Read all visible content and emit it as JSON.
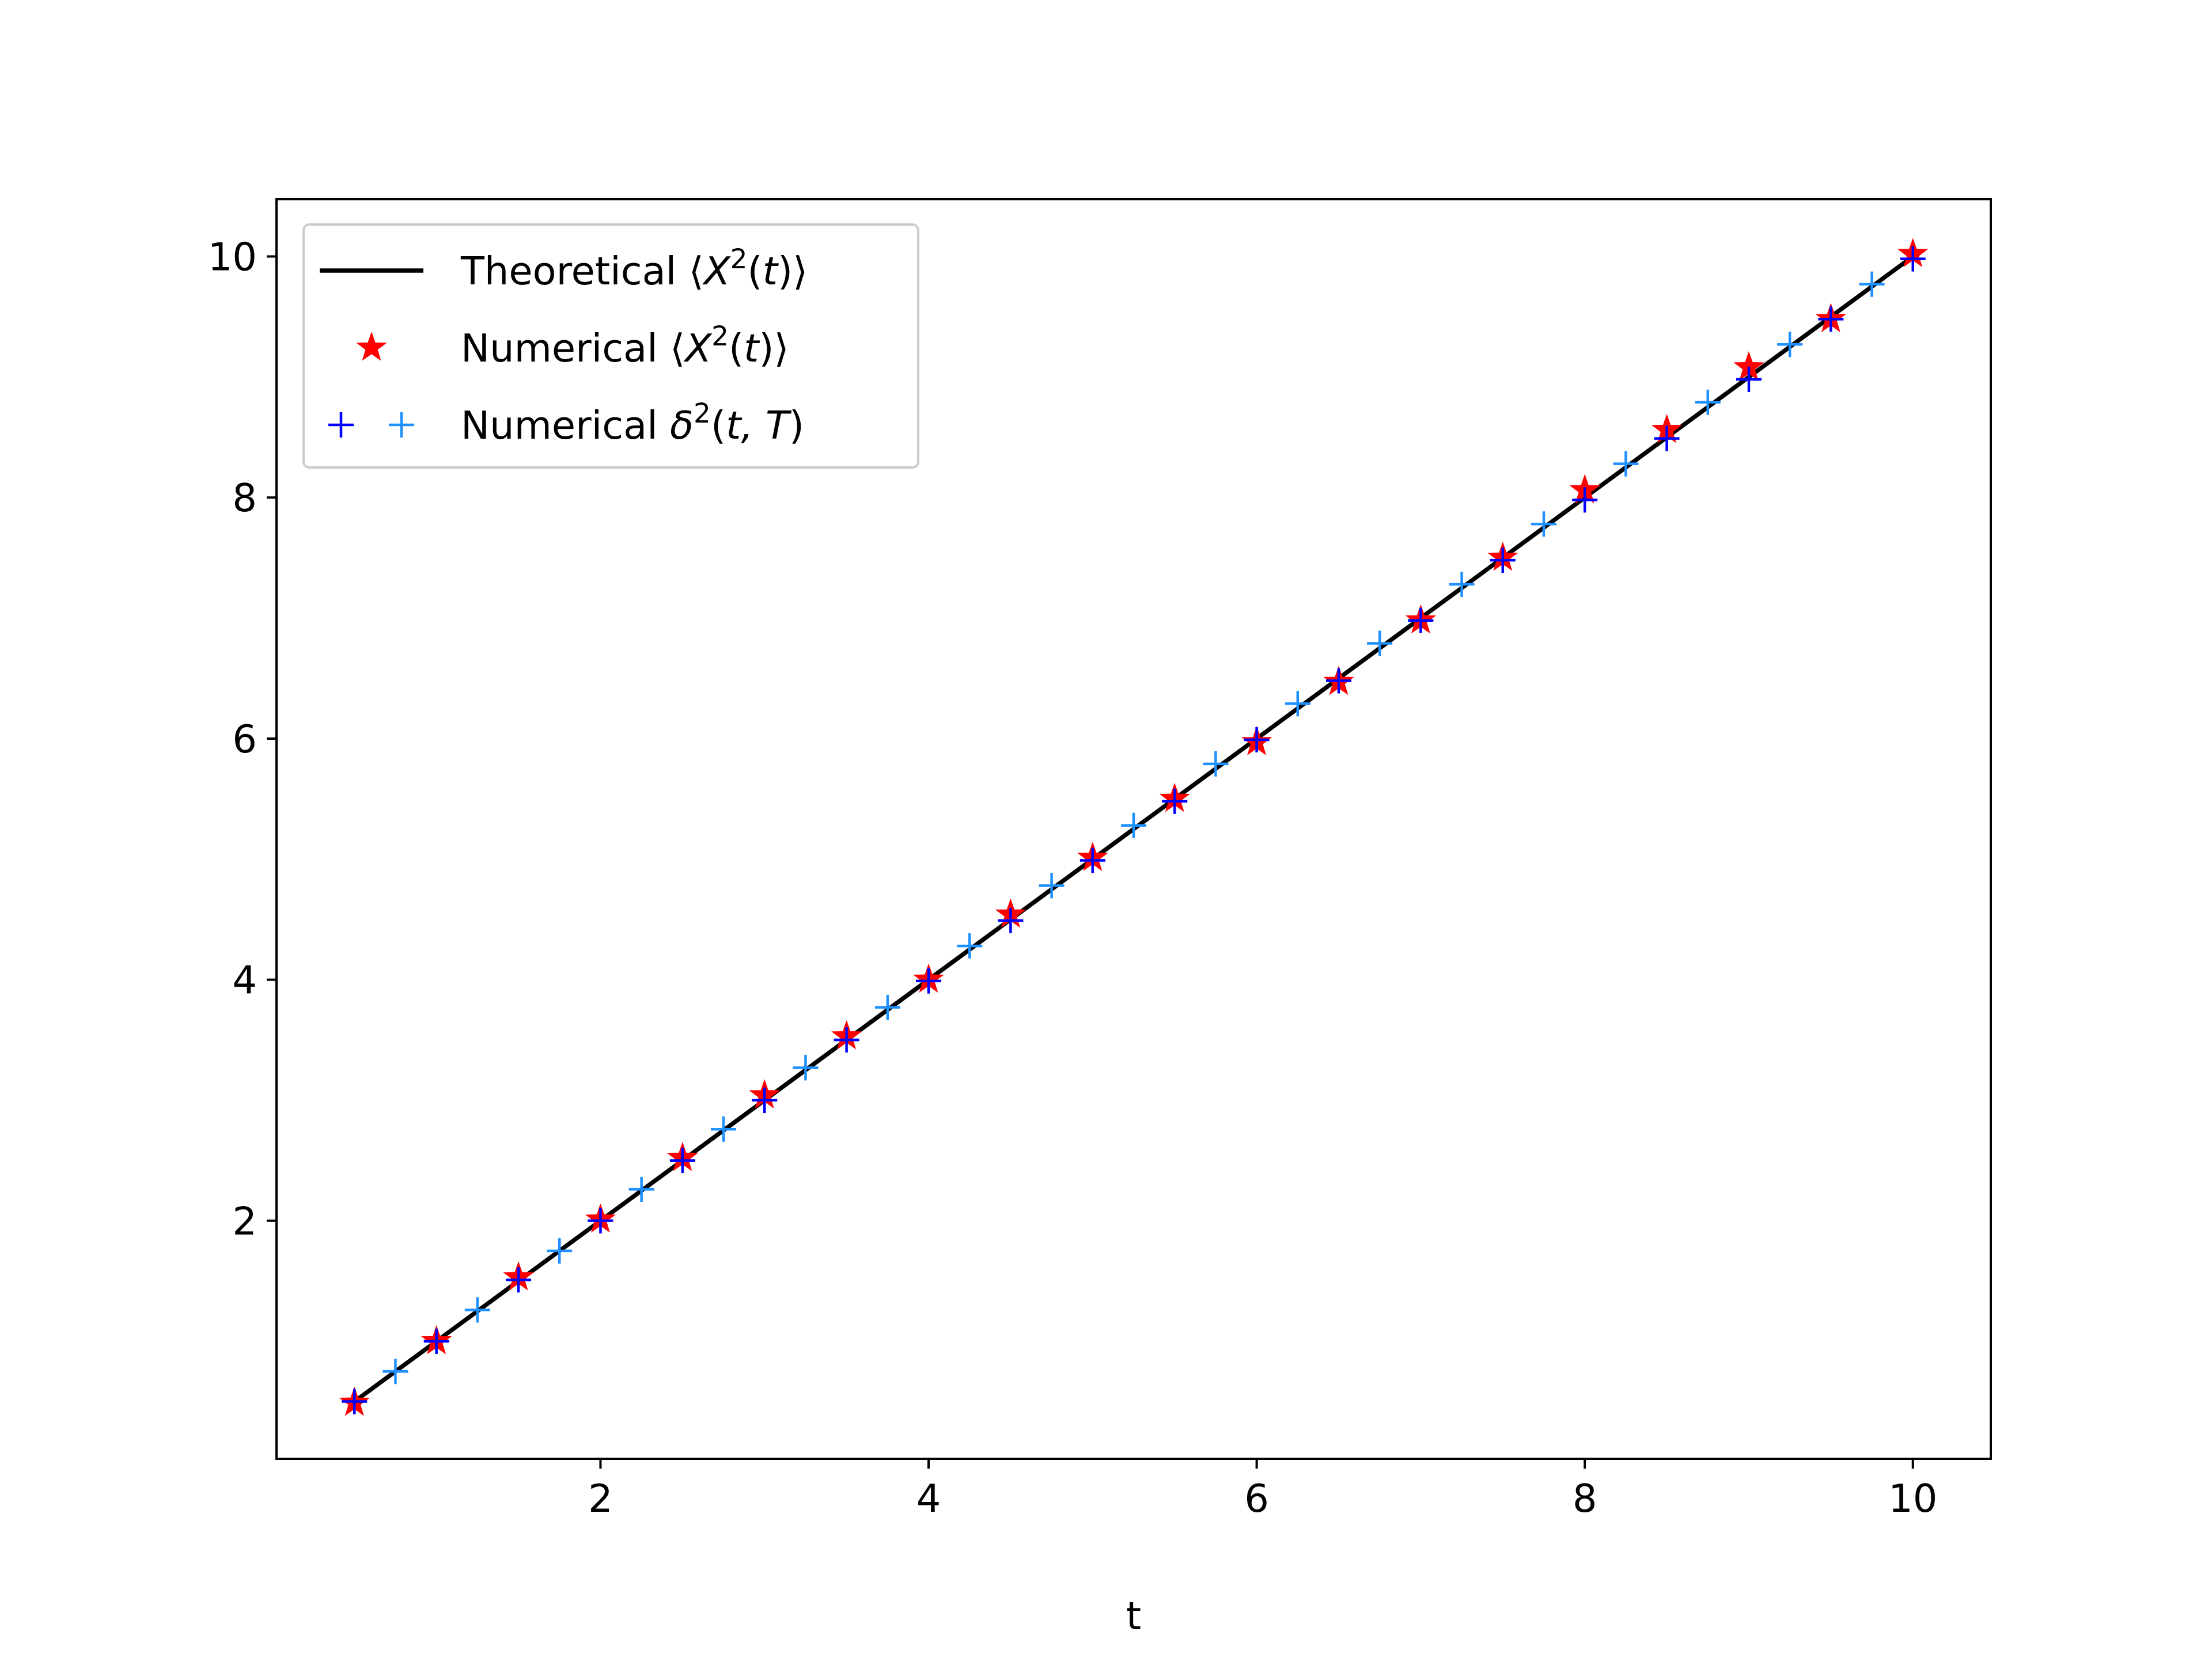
{
  "chart_data": {
    "type": "line",
    "title": "",
    "xlabel": "t",
    "ylabel": "",
    "xlim": [
      0.025,
      10.475
    ],
    "ylim": [
      0.025,
      10.475
    ],
    "xticks": [
      2,
      4,
      6,
      8,
      10
    ],
    "yticks": [
      2,
      4,
      6,
      8,
      10
    ],
    "xtick_labels": [
      "2",
      "4",
      "6",
      "8",
      "10"
    ],
    "ytick_labels": [
      "2",
      "4",
      "6",
      "8",
      "10"
    ],
    "grid": false,
    "legend_position": "top-left",
    "series": [
      {
        "name": "Theoretical ⟨X²(t)⟩",
        "legend_text": {
          "pre": "Theoretical ⟨",
          "var": "X",
          "sup": "2",
          "post": "(",
          "var2": "t",
          "post2": ")⟩"
        },
        "style": "line",
        "color": "#000000",
        "x": [
          0.5,
          10.0
        ],
        "y": [
          0.5,
          10.0
        ]
      },
      {
        "name": "Numerical ⟨X²(t)⟩",
        "legend_text": {
          "pre": "Numerical ⟨",
          "var": "X",
          "sup": "2",
          "post": "(",
          "var2": "t",
          "post2": ")⟩"
        },
        "style": "star",
        "color": "#ff0000",
        "x": [
          0.5,
          1.0,
          1.5,
          2.0,
          2.5,
          3.0,
          3.5,
          4.0,
          4.5,
          5.0,
          5.5,
          6.0,
          6.5,
          7.0,
          7.5,
          8.0,
          8.5,
          9.0,
          9.5,
          10.0
        ],
        "y": [
          0.49,
          1.0,
          1.53,
          2.01,
          2.52,
          3.04,
          3.53,
          4.0,
          4.54,
          5.01,
          5.5,
          5.97,
          6.47,
          6.98,
          7.5,
          8.06,
          8.56,
          9.08,
          9.48,
          10.02
        ]
      },
      {
        "name": "Numerical δ²(t,T)",
        "legend_text": {
          "pre": "Numerical ",
          "var": "δ",
          "sup": "2",
          "post": "(",
          "var2": "t, T",
          "post2": ")"
        },
        "style": "plus",
        "color": "#0000ff",
        "color_alt": "#1e90ff",
        "x": [
          0.5,
          0.75,
          1.0,
          1.25,
          1.5,
          1.75,
          2.0,
          2.25,
          2.5,
          2.75,
          3.0,
          3.25,
          3.5,
          3.75,
          4.0,
          4.25,
          4.5,
          4.75,
          5.0,
          5.25,
          5.5,
          5.75,
          6.0,
          6.25,
          6.5,
          6.75,
          7.0,
          7.25,
          7.5,
          7.75,
          8.0,
          8.25,
          8.5,
          8.75,
          9.0,
          9.25,
          9.5,
          9.75,
          10.0
        ],
        "y": [
          0.5,
          0.75,
          1.0,
          1.26,
          1.51,
          1.75,
          2.0,
          2.26,
          2.5,
          2.76,
          3.0,
          3.27,
          3.5,
          3.77,
          3.99,
          4.28,
          4.49,
          4.78,
          4.99,
          5.28,
          5.48,
          5.79,
          5.99,
          6.29,
          6.48,
          6.79,
          6.98,
          7.28,
          7.48,
          7.78,
          7.98,
          8.28,
          8.49,
          8.79,
          8.98,
          9.27,
          9.48,
          9.77,
          9.98
        ]
      }
    ]
  }
}
